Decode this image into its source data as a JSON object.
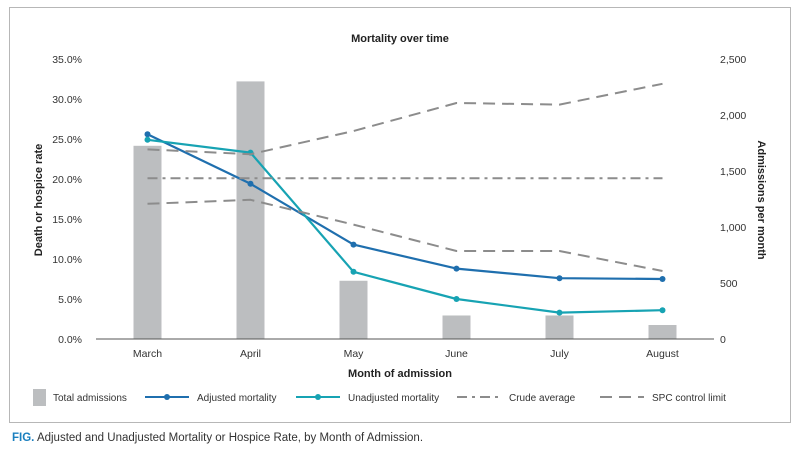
{
  "caption": {
    "label": "FIG.",
    "text": "Adjusted and Unadjusted Mortality or Hospice Rate, by Month of Admission."
  },
  "chart_data": {
    "type": "bar",
    "title": "Mortality over time",
    "xlabel": "Month of admission",
    "ylabel": "Death or hospice rate",
    "y2label": "Admissions per month",
    "categories": [
      "March",
      "April",
      "May",
      "June",
      "July",
      "August"
    ],
    "ylim": [
      0,
      35
    ],
    "y2lim": [
      0,
      2500
    ],
    "y_ticks": [
      "0.0%",
      "5.0%",
      "10.0%",
      "15.0%",
      "20.0%",
      "25.0%",
      "30.0%",
      "35.0%"
    ],
    "y2_ticks": [
      "0",
      "500",
      "1,000",
      "1,500",
      "2,000",
      "2,500"
    ],
    "grid": false,
    "legend_position": "bottom",
    "series": [
      {
        "name": "Total admissions",
        "kind": "bar",
        "axis": "right",
        "color": "#bcbec0",
        "values": [
          1725,
          2300,
          520,
          210,
          210,
          125
        ]
      },
      {
        "name": "Adjusted mortality",
        "kind": "line",
        "axis": "left",
        "color": "#1f6fae",
        "marker": true,
        "values": [
          25.6,
          19.4,
          11.8,
          8.8,
          7.6,
          7.5
        ]
      },
      {
        "name": "Unadjusted mortality",
        "kind": "line",
        "axis": "left",
        "color": "#17a3b3",
        "marker": true,
        "values": [
          24.9,
          23.3,
          8.4,
          5.0,
          3.3,
          3.6
        ]
      },
      {
        "name": "Crude average",
        "kind": "line",
        "axis": "left",
        "color": "#8c8c8c",
        "dash": "dashdot",
        "values": [
          20.1,
          20.1,
          20.1,
          20.1,
          20.1,
          20.1
        ]
      },
      {
        "name": "SPC control limit",
        "kind": "line",
        "axis": "left",
        "color": "#8c8c8c",
        "dash": "dashed",
        "group": "upper",
        "values": [
          23.7,
          23.1,
          26.0,
          29.5,
          29.3,
          31.9
        ]
      },
      {
        "name": "SPC control limit",
        "kind": "line",
        "axis": "left",
        "color": "#8c8c8c",
        "dash": "dashed",
        "group": "lower",
        "values": [
          16.9,
          17.4,
          14.3,
          11.0,
          11.0,
          8.5
        ]
      }
    ]
  }
}
